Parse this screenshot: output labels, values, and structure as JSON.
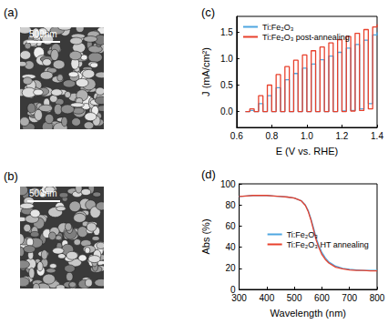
{
  "images": [
    {
      "label": "(a)",
      "scale_bar": "500nm"
    },
    {
      "label": "(b)",
      "scale_bar": "500nm"
    }
  ],
  "chart_data": [
    {
      "type": "line",
      "title": "(c)",
      "x_label": "E (V vs. RHE)",
      "y_label": "J (mA/cm²)",
      "x": [
        0.65,
        0.675,
        0.7,
        0.725,
        0.75,
        0.775,
        0.8,
        0.825,
        0.85,
        0.875,
        0.9,
        0.925,
        0.95,
        0.975,
        1.0,
        1.025,
        1.05,
        1.075,
        1.1,
        1.125,
        1.15,
        1.175,
        1.2,
        1.225,
        1.25,
        1.275,
        1.3,
        1.325,
        1.35,
        1.375,
        1.4
      ],
      "series": [
        {
          "name": "Ti:Fe₂O₃",
          "color": "#4ea6e0",
          "values": [
            0,
            0.02,
            0,
            0.15,
            0,
            0.3,
            0,
            0.45,
            0,
            0.6,
            0,
            0.72,
            0,
            0.82,
            0,
            0.9,
            0,
            0.98,
            0,
            1.05,
            0,
            1.12,
            0.01,
            1.2,
            0.02,
            1.27,
            0.05,
            1.35,
            0.15,
            1.45,
            1.5
          ]
        },
        {
          "name": "Ti:Fe₂O₃ post-annealing",
          "color": "#e8412c",
          "values": [
            0,
            0.05,
            0,
            0.3,
            0,
            0.5,
            0,
            0.7,
            0,
            0.85,
            0,
            0.97,
            0,
            1.07,
            0,
            1.15,
            0,
            1.22,
            0,
            1.3,
            0,
            1.36,
            0,
            1.42,
            0.01,
            1.48,
            0.02,
            1.55,
            0.05,
            1.6,
            1.65
          ]
        }
      ],
      "xlim": [
        0.6,
        1.4
      ],
      "xticks": [
        0.6,
        0.8,
        {
          "value": 1,
          "label": "1.0"
        },
        1.2,
        1.4
      ],
      "ylim": [
        -0.3,
        1.8
      ],
      "yticks": [
        {
          "value": 0,
          "label": "0.0"
        },
        0.5,
        {
          "value": 1,
          "label": "1.0"
        },
        1.5
      ],
      "legend": "upper left",
      "grid": false
    },
    {
      "type": "line",
      "title": "(d)",
      "x_label": "Wavelength (nm)",
      "y_label": "Abs (%)",
      "x": [
        300,
        325,
        350,
        375,
        400,
        425,
        450,
        475,
        500,
        525,
        540,
        550,
        560,
        570,
        575,
        580,
        590,
        600,
        612,
        625,
        650,
        675,
        700,
        725,
        750,
        775,
        800
      ],
      "series": [
        {
          "name": "Ti:Fe₂O₃",
          "color": "#4ea6e0",
          "values": [
            88,
            88.5,
            89,
            89,
            89,
            88.5,
            88,
            87.5,
            86.5,
            84,
            80,
            75,
            67,
            58,
            53,
            48,
            41,
            35,
            30,
            26,
            22,
            20,
            19,
            18.5,
            18,
            18,
            18
          ]
        },
        {
          "name": "Ti:Fe₂O₃ HT annealing",
          "color": "#e8412c",
          "values": [
            88,
            88.5,
            89,
            89,
            89,
            88.5,
            88,
            87.5,
            86.5,
            84,
            79.5,
            74,
            66,
            56,
            51,
            46,
            39,
            33,
            28.5,
            25,
            21,
            19.5,
            18.5,
            18,
            18,
            17.5,
            17.5
          ]
        }
      ],
      "xlim": [
        300,
        800
      ],
      "xticks": [
        300,
        400,
        500,
        600,
        700,
        800
      ],
      "ylim": [
        0,
        100
      ],
      "yticks": [
        0,
        20,
        40,
        60,
        80,
        100
      ],
      "legend": "upper right",
      "grid": false
    }
  ]
}
